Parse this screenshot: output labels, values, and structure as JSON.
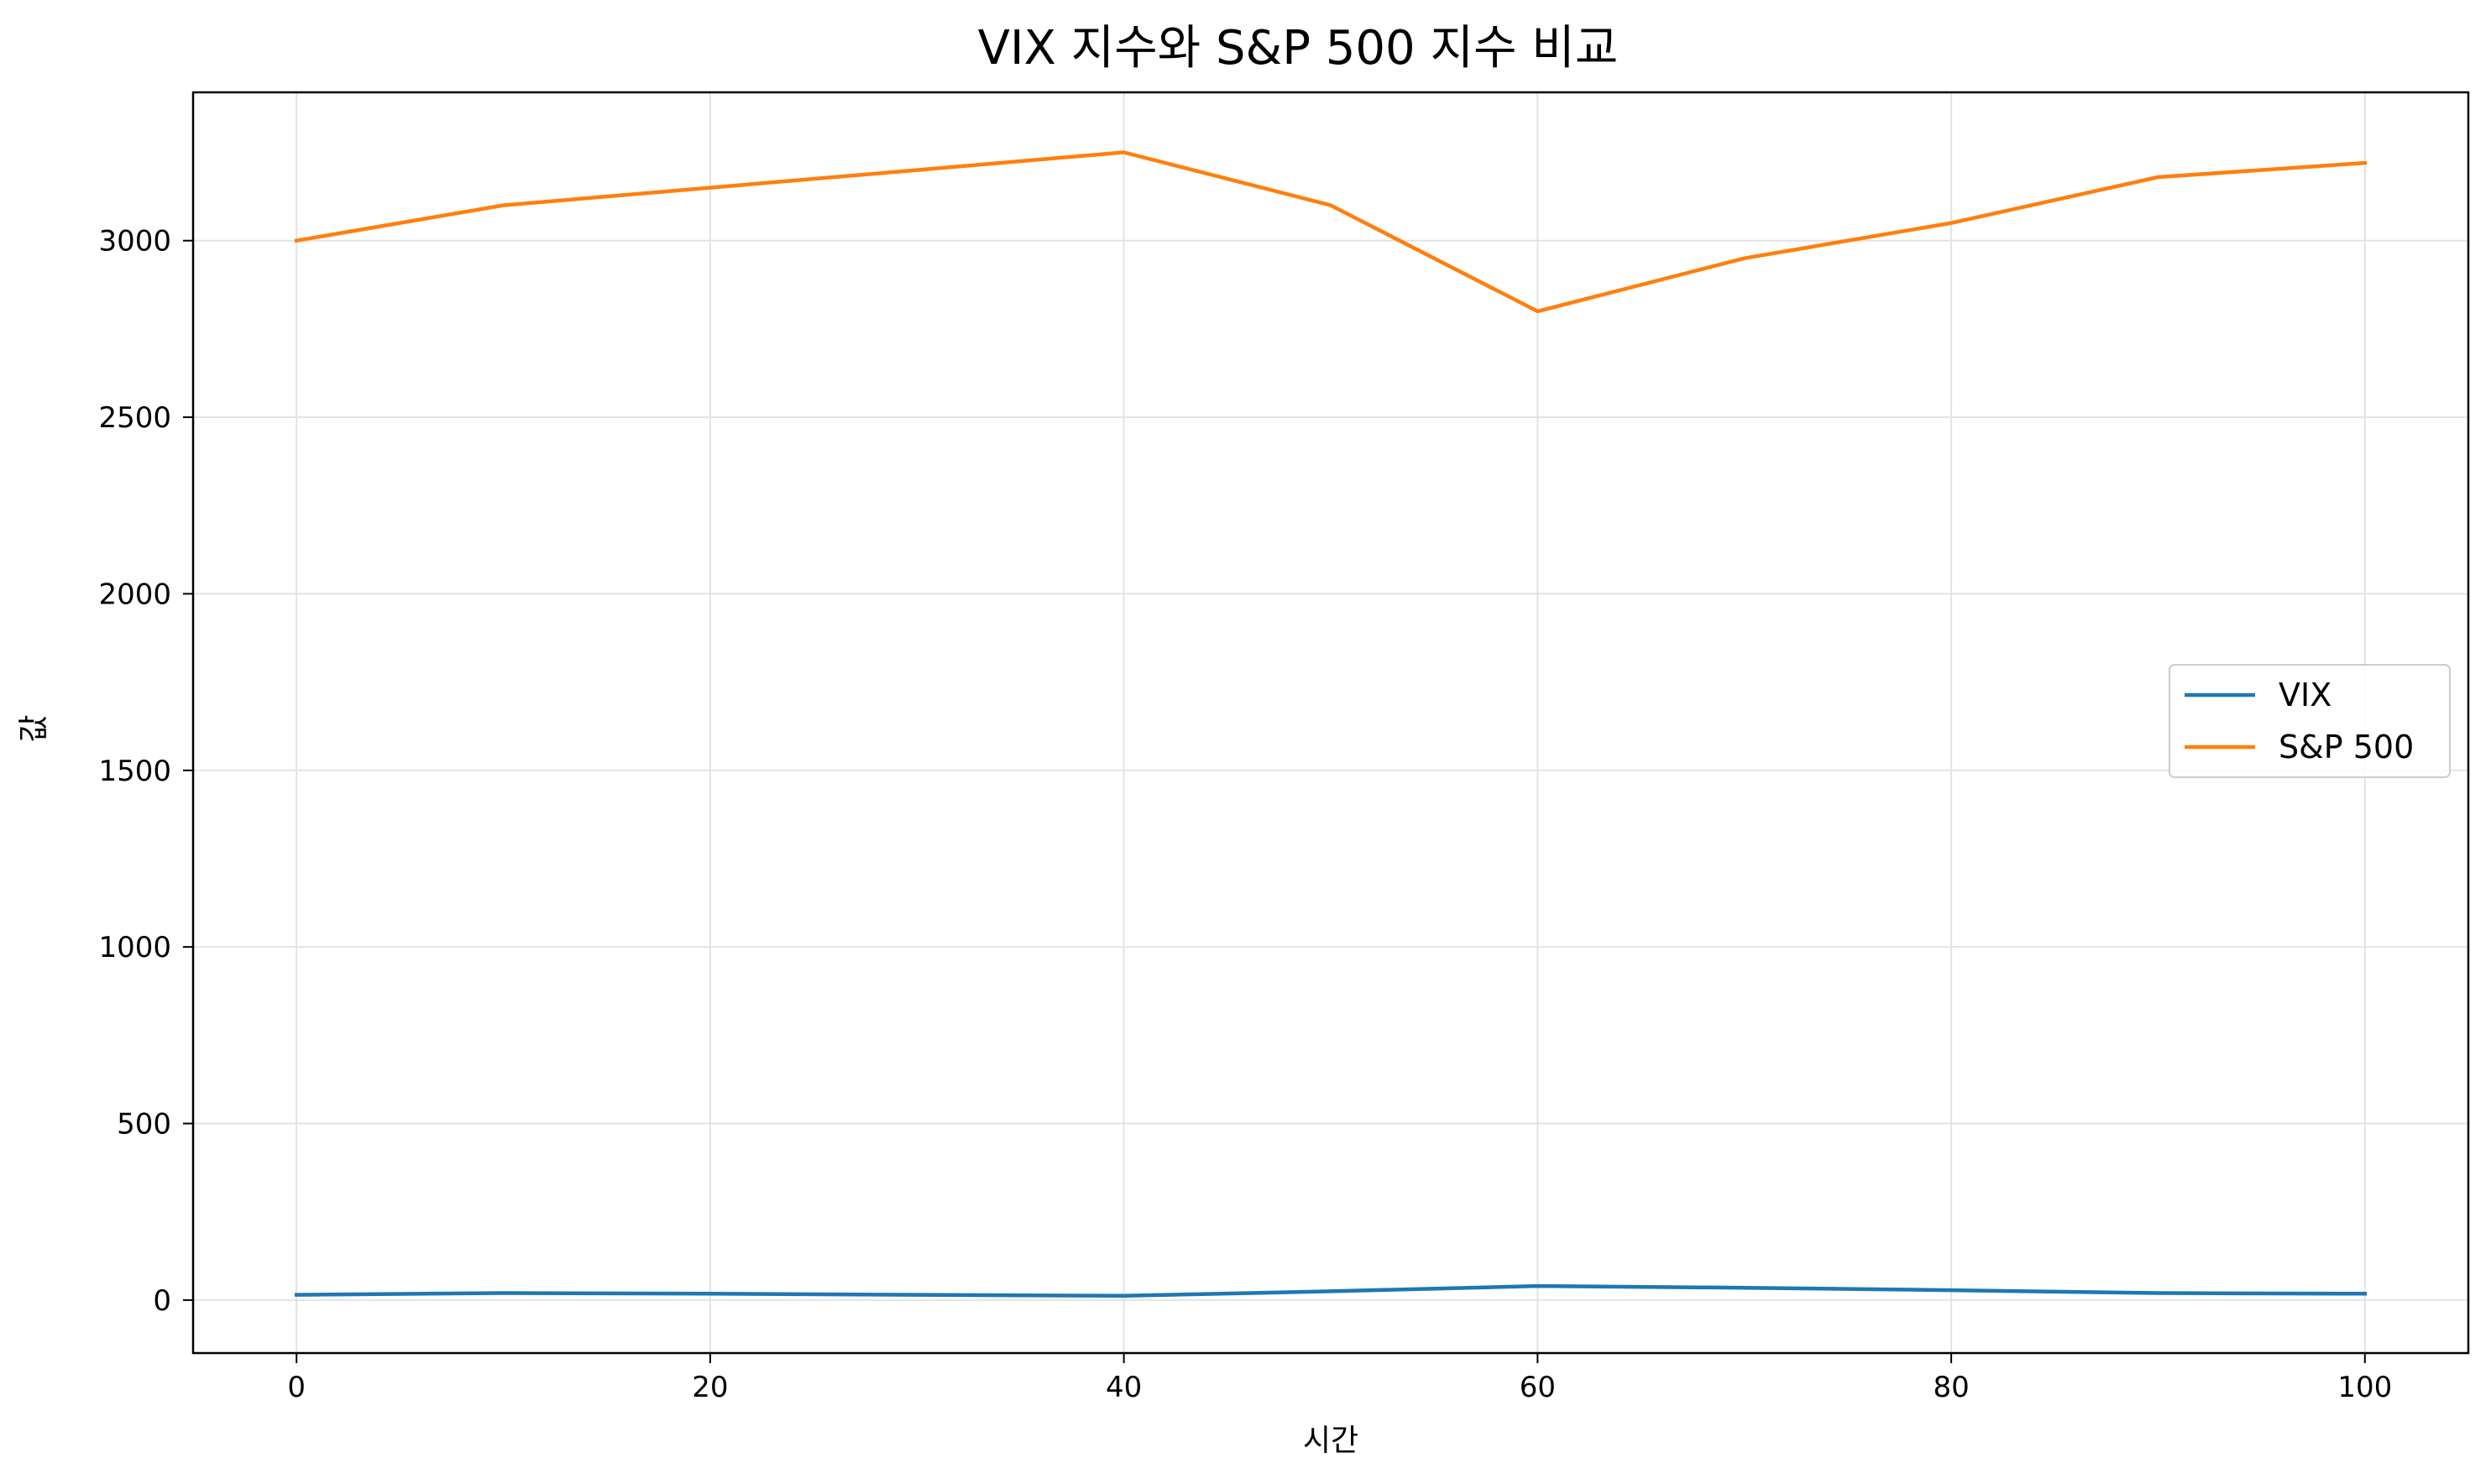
{
  "chart_data": {
    "type": "line",
    "title": "VIX 지수와 S&P 500 지수 비교",
    "xlabel": "시간",
    "ylabel": "값",
    "xlim": [
      -5,
      105
    ],
    "ylim": [
      -150,
      3420
    ],
    "x_ticks": [
      0,
      20,
      40,
      60,
      80,
      100
    ],
    "y_ticks": [
      0,
      500,
      1000,
      1500,
      2000,
      2500,
      3000
    ],
    "grid": true,
    "legend_position": "center-right",
    "x": [
      0,
      10,
      20,
      30,
      40,
      50,
      60,
      70,
      80,
      90,
      100
    ],
    "series": [
      {
        "name": "VIX",
        "color": "#1f77b4",
        "values": [
          15,
          20,
          18,
          15,
          12,
          25,
          40,
          35,
          28,
          20,
          18
        ]
      },
      {
        "name": "S&P 500",
        "color": "#ff7f0e",
        "values": [
          3000,
          3100,
          3150,
          3200,
          3250,
          3100,
          2800,
          2950,
          3050,
          3180,
          3220
        ]
      }
    ]
  }
}
